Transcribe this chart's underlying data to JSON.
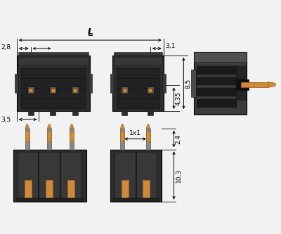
{
  "bg_color": "#f2f2f2",
  "dark_body": "#2d2d2d",
  "dark_inner": "#3d3d3d",
  "dark_slot": "#1a1a1a",
  "dark_groove": "#4a4a4a",
  "copper": "#cd8b3a",
  "copper_dark": "#a06020",
  "line_color": "#000000",
  "dim_2_8": "2,8",
  "dim_L": "L",
  "dim_3_1": "3,1",
  "dim_3_5": "3,5",
  "dim_4_35": "4,35",
  "dim_8_5": "8,5",
  "dim_1x1": "1x1",
  "dim_2_4": "2,4",
  "dim_10_3": "10,3",
  "figsize": [
    4.0,
    3.33
  ],
  "dpi": 100
}
